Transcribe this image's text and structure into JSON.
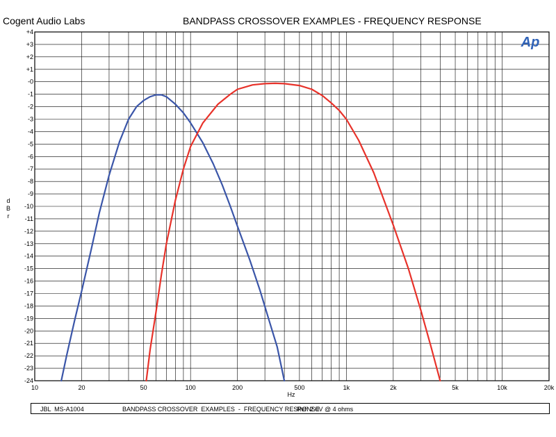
{
  "header": {
    "brand": "Cogent Audio Labs",
    "title": "BANDPASS CROSSOVER  EXAMPLES  -  FREQUENCY RESPONSE"
  },
  "logo_text": "Ap",
  "footer": {
    "model": "JBL  MS-A1004",
    "title": "BANDPASS CROSSOVER  EXAMPLES  -  FREQUENCY RESPONSE",
    "ref": "Ref: 2.0V @ 4 ohms"
  },
  "colors": {
    "blue": "#3a55a8",
    "red": "#e8322a",
    "logo": "#2f62b8",
    "grid": "#000000"
  },
  "chart_data": {
    "type": "line",
    "xscale": "log",
    "xlim": [
      10,
      20000
    ],
    "ylim": [
      -24,
      4
    ],
    "xlabel": "Hz",
    "ylabel": "dBr",
    "grid": true,
    "xticks": [
      {
        "value": 10,
        "label": "10"
      },
      {
        "value": 20,
        "label": "20"
      },
      {
        "value": 50,
        "label": "50"
      },
      {
        "value": 100,
        "label": "100"
      },
      {
        "value": 200,
        "label": "200"
      },
      {
        "value": 500,
        "label": "500"
      },
      {
        "value": 1000,
        "label": "1k"
      },
      {
        "value": 2000,
        "label": "2k"
      },
      {
        "value": 5000,
        "label": "5k"
      },
      {
        "value": 10000,
        "label": "10k"
      },
      {
        "value": 20000,
        "label": "20k"
      }
    ],
    "yticks": [
      {
        "value": 4,
        "label": "+4"
      },
      {
        "value": 3,
        "label": "+3"
      },
      {
        "value": 2,
        "label": "+2"
      },
      {
        "value": 1,
        "label": "+1"
      },
      {
        "value": 0,
        "label": "-0"
      },
      {
        "value": -1,
        "label": "-1"
      },
      {
        "value": -2,
        "label": "-2"
      },
      {
        "value": -3,
        "label": "-3"
      },
      {
        "value": -4,
        "label": "-4"
      },
      {
        "value": -5,
        "label": "-5"
      },
      {
        "value": -6,
        "label": "-6"
      },
      {
        "value": -7,
        "label": "-7"
      },
      {
        "value": -8,
        "label": "-8"
      },
      {
        "value": -9,
        "label": "-9"
      },
      {
        "value": -10,
        "label": "-10"
      },
      {
        "value": -11,
        "label": "-11"
      },
      {
        "value": -12,
        "label": "-12"
      },
      {
        "value": -13,
        "label": "-13"
      },
      {
        "value": -14,
        "label": "-14"
      },
      {
        "value": -15,
        "label": "-15"
      },
      {
        "value": -16,
        "label": "-16"
      },
      {
        "value": -17,
        "label": "-17"
      },
      {
        "value": -18,
        "label": "-18"
      },
      {
        "value": -19,
        "label": "-19"
      },
      {
        "value": -20,
        "label": "-20"
      },
      {
        "value": -21,
        "label": "-21"
      },
      {
        "value": -22,
        "label": "-22"
      },
      {
        "value": -23,
        "label": "-23"
      },
      {
        "value": -24,
        "label": "-24"
      }
    ],
    "series": [
      {
        "color": "blue",
        "points": [
          [
            14.8,
            -24
          ],
          [
            16,
            -22
          ],
          [
            18,
            -19.2
          ],
          [
            20,
            -16.8
          ],
          [
            23,
            -13.5
          ],
          [
            26,
            -10.5
          ],
          [
            30,
            -7.5
          ],
          [
            35,
            -4.8
          ],
          [
            40,
            -3
          ],
          [
            45,
            -2
          ],
          [
            50,
            -1.5
          ],
          [
            55,
            -1.2
          ],
          [
            60,
            -1.05
          ],
          [
            65,
            -1.05
          ],
          [
            70,
            -1.2
          ],
          [
            80,
            -1.8
          ],
          [
            90,
            -2.5
          ],
          [
            100,
            -3.3
          ],
          [
            120,
            -4.9
          ],
          [
            140,
            -6.6
          ],
          [
            160,
            -8.3
          ],
          [
            180,
            -10
          ],
          [
            200,
            -11.6
          ],
          [
            240,
            -14.3
          ],
          [
            280,
            -16.8
          ],
          [
            320,
            -19.2
          ],
          [
            360,
            -21.3
          ],
          [
            400,
            -24
          ]
        ]
      },
      {
        "color": "red",
        "points": [
          [
            52,
            -24
          ],
          [
            55,
            -21.5
          ],
          [
            60,
            -18.5
          ],
          [
            65,
            -15.5
          ],
          [
            70,
            -13
          ],
          [
            80,
            -9.5
          ],
          [
            90,
            -7
          ],
          [
            100,
            -5.2
          ],
          [
            120,
            -3.3
          ],
          [
            150,
            -1.8
          ],
          [
            180,
            -1
          ],
          [
            200,
            -0.6
          ],
          [
            250,
            -0.25
          ],
          [
            300,
            -0.15
          ],
          [
            350,
            -0.12
          ],
          [
            400,
            -0.15
          ],
          [
            500,
            -0.3
          ],
          [
            600,
            -0.6
          ],
          [
            700,
            -1.1
          ],
          [
            800,
            -1.7
          ],
          [
            900,
            -2.3
          ],
          [
            1000,
            -3
          ],
          [
            1200,
            -4.7
          ],
          [
            1500,
            -7.3
          ],
          [
            2000,
            -11.5
          ],
          [
            2500,
            -15
          ],
          [
            3000,
            -18.3
          ],
          [
            3500,
            -21.3
          ],
          [
            4000,
            -24
          ]
        ]
      }
    ]
  }
}
